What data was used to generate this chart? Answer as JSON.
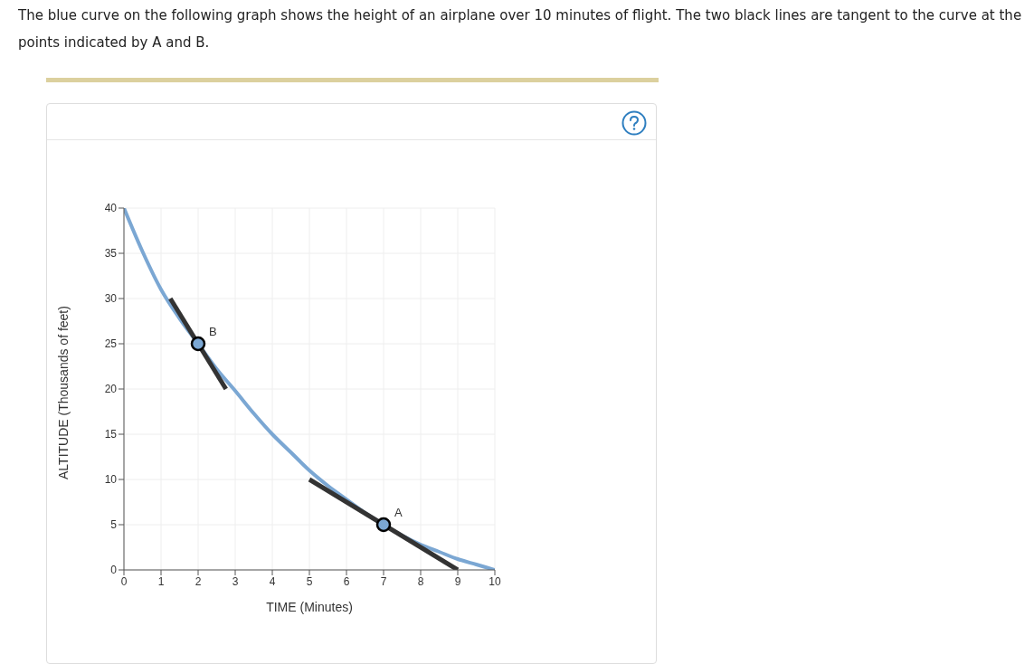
{
  "chart_data": {
    "type": "line",
    "title": "The blue curve on the following graph shows the height of an airplane over 10 minutes of flight. The two black lines are tangent to the curve at the points indicated by A and B.",
    "xlabel": "TIME (Minutes)",
    "ylabel": "ALTITUDE (Thousands of feet)",
    "xlim": [
      0,
      10
    ],
    "ylim": [
      0,
      40
    ],
    "xticks": [
      0,
      1,
      2,
      3,
      4,
      5,
      6,
      7,
      8,
      9,
      10
    ],
    "yticks": [
      0,
      5,
      10,
      15,
      20,
      25,
      30,
      35,
      40
    ],
    "grid": true,
    "series": [
      {
        "color": "#7ba7d3",
        "x": [
          0,
          0.5,
          1,
          1.5,
          2,
          2.5,
          3,
          3.5,
          4,
          4.5,
          5,
          5.5,
          6,
          6.5,
          7,
          7.5,
          8,
          8.5,
          9,
          9.5,
          10
        ],
        "values": [
          40,
          35.2,
          31,
          27.8,
          25,
          22.2,
          19.8,
          17.3,
          15,
          13,
          11,
          9.3,
          7.8,
          6.3,
          5,
          3.8,
          2.8,
          2,
          1.2,
          0.6,
          0
        ]
      },
      {
        "color": "#333333",
        "x": [
          1.25,
          2.75
        ],
        "values": [
          30,
          20
        ]
      },
      {
        "color": "#333333",
        "x": [
          5,
          9
        ],
        "values": [
          10,
          0
        ]
      },
      {
        "type": "scatter",
        "color": "#7ba7d3",
        "marker": "circle",
        "x": [
          2,
          7
        ],
        "values": [
          25,
          5
        ]
      }
    ],
    "annotations": [
      {
        "text": "B",
        "x": 2,
        "y": 25
      },
      {
        "text": "A",
        "x": 7,
        "y": 5
      }
    ]
  }
}
